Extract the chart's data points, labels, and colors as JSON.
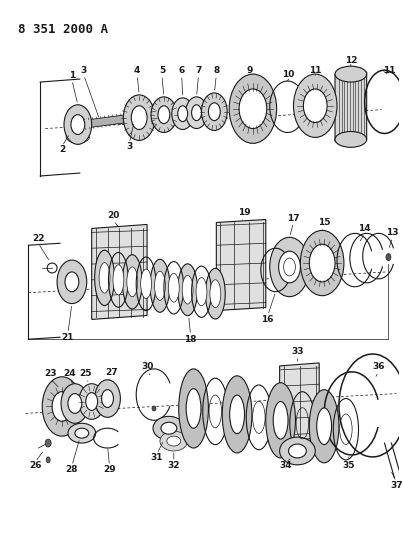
{
  "title": "8 351 2000 A",
  "bg_color": "#ffffff",
  "line_color": "#1a1a1a",
  "title_fontsize": 9,
  "label_fontsize": 6.5,
  "fig_width": 4.03,
  "fig_height": 5.33,
  "dpi": 100
}
